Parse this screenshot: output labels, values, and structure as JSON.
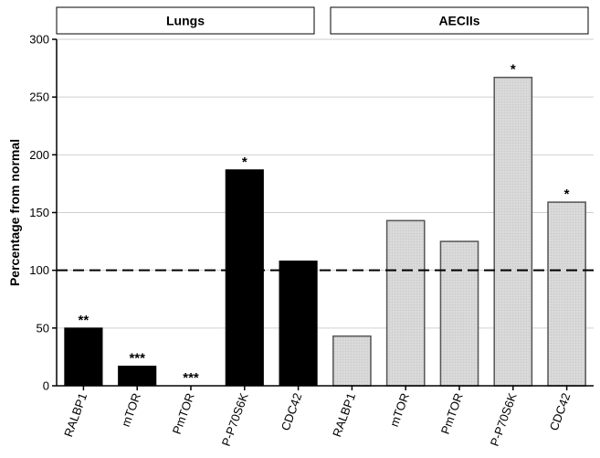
{
  "chart_data": {
    "type": "bar",
    "ylabel": "Percentage from normal",
    "ylim": [
      0,
      300
    ],
    "yticks": [
      0,
      50,
      100,
      150,
      200,
      250,
      300
    ],
    "grid": "horizontal",
    "reference_line": 100,
    "groups": [
      {
        "name": "Lungs",
        "bar_color": "#000000",
        "categories": [
          "RALBP1",
          "mTOR",
          "PmTOR",
          "P-P70S6K",
          "CDC42"
        ],
        "values": [
          50,
          17,
          0,
          187,
          108
        ],
        "significance": [
          "**",
          "***",
          "***",
          "*",
          ""
        ]
      },
      {
        "name": "AECIIs",
        "bar_color": "#d9d9d9",
        "categories": [
          "RALBP1",
          "mTOR",
          "PmTOR",
          "P-P70S6K",
          "CDC42"
        ],
        "values": [
          43,
          143,
          125,
          267,
          159
        ],
        "significance": [
          "",
          "",
          "",
          "*",
          "*"
        ]
      }
    ]
  }
}
